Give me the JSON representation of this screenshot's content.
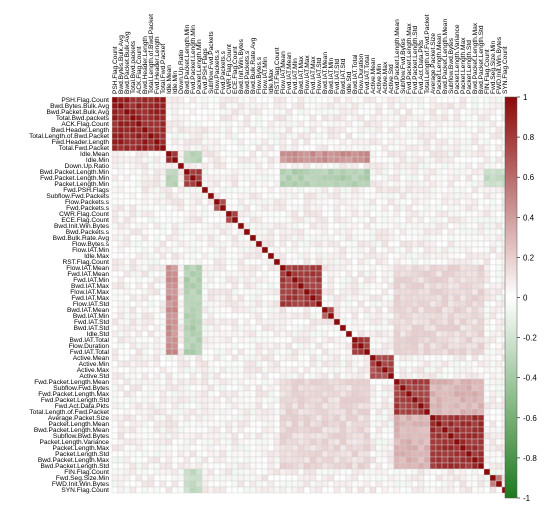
{
  "chart_data": {
    "type": "heatmap",
    "title": "",
    "xlabel": "",
    "ylabel": "",
    "labels": [
      "PSH.Flag.Count",
      "Bwd.Bytes.Bulk.Avg",
      "Bwd.Packet.Bulk.Avg",
      "Total.Bwd.packets",
      "ACK.Flag.Count",
      "Bwd.Header.Length",
      "Total.Length.of.Bwd.Packet",
      "Fwd.Header.Length",
      "Total.Fwd.Packet",
      "Idle.Mean",
      "Idle.Min",
      "Down.Up.Ratio",
      "Bwd.Packet.Length.Min",
      "Fwd.Packet.Length.Min",
      "Packet.Length.Min",
      "Fwd.PSH.Flags",
      "Subflow.Fwd.Packets",
      "Flow.Packets.s",
      "Fwd.Packets.s",
      "CWR.Flag.Count",
      "ECE.Flag.Count",
      "Bwd.Init.Win.Bytes",
      "Bwd.Packets.s",
      "Bwd.Bulk.Rate.Avg",
      "Flow.Bytes.s",
      "Flow.IAT.Min",
      "Idle.Max",
      "RST.Flag.Count",
      "Flow.IAT.Mean",
      "Fwd.IAT.Mean",
      "Fwd.IAT.Min",
      "Bwd.IAT.Max",
      "Flow.IAT.Max",
      "Fwd.IAT.Max",
      "Flow.IAT.Std",
      "Bwd.IAT.Mean",
      "Bwd.IAT.Min",
      "Fwd.IAT.Std",
      "Bwd.IAT.Std",
      "Idle.Std",
      "Bwd.IAT.Total",
      "Flow.Duration",
      "Fwd.IAT.Total",
      "Active.Mean",
      "Active.Min",
      "Active.Max",
      "Active.Std",
      "Fwd.Packet.Length.Mean",
      "Subflow.Fwd.Bytes",
      "Fwd.Packet.Length.Max",
      "Fwd.Packet.Length.Std",
      "Fwd.Act.Data.Pkts",
      "Total.Length.of.Fwd.Packet",
      "Average.Packet.Size",
      "Packet.Length.Mean",
      "Bwd.Packet.Length.Mean",
      "Subflow.Bwd.Bytes",
      "Packet.Length.Variance",
      "Packet.Length.Max",
      "Packet.Length.Std",
      "Bwd.Packet.Length.Max",
      "Bwd.Packet.Length.Std",
      "FIN.Flag.Count",
      "Fwd.Seg.Size.Min",
      "FWD.Init.Win.Bytes",
      "SYN.Flag.Count"
    ],
    "correlation_blocks": [
      {
        "from": "PSH.Flag.Count",
        "to": "Total.Fwd.Packet",
        "value": 0.95
      },
      {
        "from": "Idle.Mean",
        "to": "Idle.Min",
        "value": 0.9
      },
      {
        "from": "Bwd.Packet.Length.Min",
        "to": "Packet.Length.Min",
        "value": 0.85
      },
      {
        "from": "Flow.Packets.s",
        "to": "Fwd.Packets.s",
        "value": 0.8
      },
      {
        "from": "CWR.Flag.Count",
        "to": "ECE.Flag.Count",
        "value": 0.8
      },
      {
        "from": "Flow.IAT.Mean",
        "to": "Flow.IAT.Std",
        "value": 0.85
      },
      {
        "from": "Bwd.IAT.Mean",
        "to": "Bwd.IAT.Min",
        "value": 0.75
      },
      {
        "from": "Bwd.IAT.Total",
        "to": "Fwd.IAT.Total",
        "value": 0.9
      },
      {
        "from": "Active.Mean",
        "to": "Active.Std",
        "value": 0.8
      },
      {
        "from": "Fwd.Packet.Length.Mean",
        "to": "Total.Length.of.Fwd.Packet",
        "value": 0.85
      },
      {
        "from": "Average.Packet.Size",
        "to": "Bwd.Packet.Length.Std",
        "value": 0.9
      },
      {
        "from": "Fwd.Seg.Size.Min",
        "to": "FWD.Init.Win.Bytes",
        "value": 0.6
      }
    ],
    "colorbar": {
      "min": -1,
      "max": 1,
      "ticks": [
        "-1",
        "-0.8",
        "-0.6",
        "-0.4",
        "-0.2",
        "0",
        "0.2",
        "0.4",
        "0.6",
        "0.8",
        "1"
      ],
      "colors": {
        "negative": "#1d7a1d",
        "zero": "#ffffff",
        "positive": "#8b0a0a"
      }
    },
    "grid": true,
    "legend_position": "right"
  }
}
